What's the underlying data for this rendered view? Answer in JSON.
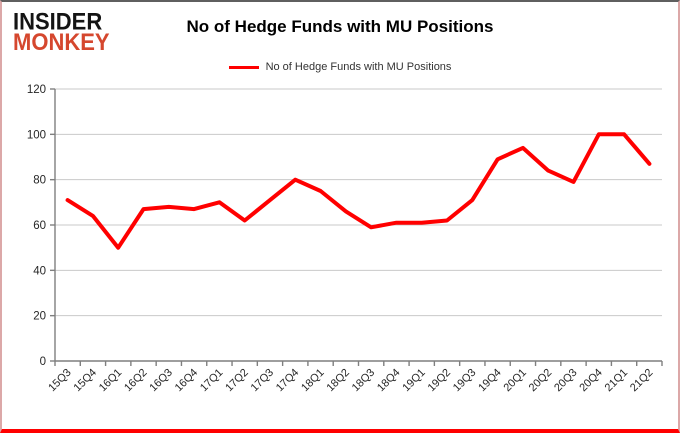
{
  "logo": {
    "line1": "INSIDER",
    "line2": "MONKEY",
    "brand_color": "#d5472e",
    "text_color": "#141414"
  },
  "header": {
    "title": "No of Hedge Funds with MU Positions"
  },
  "legend": {
    "label": "No of Hedge Funds with MU Positions",
    "line_color": "#ff0000"
  },
  "chart_data": {
    "type": "line",
    "title": "No of Hedge Funds with MU Positions",
    "categories": [
      "15Q3",
      "15Q4",
      "16Q1",
      "16Q2",
      "16Q3",
      "16Q4",
      "17Q1",
      "17Q2",
      "17Q3",
      "17Q4",
      "18Q1",
      "18Q2",
      "18Q3",
      "18Q4",
      "19Q1",
      "19Q2",
      "19Q3",
      "19Q4",
      "20Q1",
      "20Q2",
      "20Q3",
      "20Q4",
      "21Q1",
      "21Q2"
    ],
    "series": [
      {
        "name": "No of Hedge Funds with MU Positions",
        "color": "#ff0000",
        "values": [
          71,
          64,
          50,
          67,
          68,
          67,
          70,
          62,
          71,
          80,
          75,
          66,
          59,
          61,
          61,
          62,
          71,
          89,
          94,
          84,
          79,
          100,
          100,
          87
        ]
      }
    ],
    "xlabel": "",
    "ylabel": "",
    "ylim": [
      0,
      120
    ],
    "yticks": [
      0,
      20,
      40,
      60,
      80,
      100,
      120
    ],
    "grid": "horizontal",
    "legend_position": "top-center",
    "x_tick_label_rotation": -45
  },
  "style_colors": {
    "gridline": "#c9c9c9",
    "axis": "#7f7f7f",
    "tick_label": "#262626",
    "background": "#ffffff",
    "border_bottom": "#ff0000"
  }
}
